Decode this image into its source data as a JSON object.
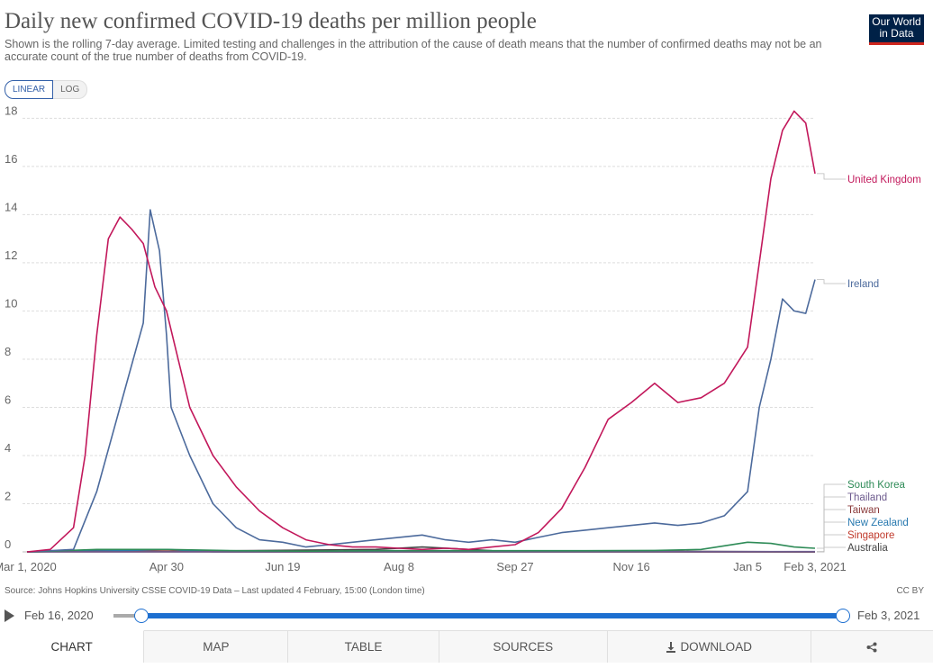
{
  "header": {
    "title": "Daily new confirmed COVID-19 deaths per million people",
    "subtitle": "Shown is the rolling 7-day average. Limited testing and challenges in the attribution of the cause of death means that the number of confirmed deaths may not be an accurate count of the true number of deaths from COVID-19.",
    "logo_line1": "Our World",
    "logo_line2": "in Data"
  },
  "scale_toggle": {
    "linear": "LINEAR",
    "log": "LOG",
    "selected": "linear"
  },
  "footer": {
    "source": "Source: Johns Hopkins University CSSE COVID-19 Data – Last updated 4 February, 15:00 (London time)",
    "license": "CC BY"
  },
  "timeline": {
    "start_label": "Feb 16, 2020",
    "end_label": "Feb 3, 2021"
  },
  "tabs": [
    {
      "label": "CHART",
      "active": true
    },
    {
      "label": "MAP"
    },
    {
      "label": "TABLE"
    },
    {
      "label": "SOURCES"
    },
    {
      "label": "DOWNLOAD"
    },
    {
      "label": ""
    }
  ],
  "colors": {
    "accent": "#1d6fd0",
    "brand": "#002147",
    "brand_line": "#ce261e"
  },
  "icons": {
    "play": "play-icon",
    "download": "download-icon",
    "share": "share-icon"
  },
  "chart_data": {
    "type": "line",
    "title": "Daily new confirmed COVID-19 deaths per million people",
    "y_ticks": [
      0,
      2,
      4,
      6,
      8,
      10,
      12,
      14,
      16,
      18
    ],
    "ylim": [
      0,
      18.5
    ],
    "x_tick_labels": [
      "Mar 1, 2020",
      "Apr 30",
      "Jun 19",
      "Aug 8",
      "Sep 27",
      "Nov 16",
      "Jan 5",
      "Feb 3, 2021"
    ],
    "x_tick_days": [
      0,
      60,
      110,
      160,
      210,
      260,
      310,
      339
    ],
    "xlim": [
      0,
      339
    ],
    "grid": true,
    "series": [
      {
        "name": "United Kingdom",
        "color": "#c2185b",
        "points": [
          [
            0,
            0
          ],
          [
            10,
            0.1
          ],
          [
            20,
            1.0
          ],
          [
            25,
            4
          ],
          [
            30,
            9
          ],
          [
            35,
            13
          ],
          [
            40,
            13.9
          ],
          [
            45,
            13.4
          ],
          [
            50,
            12.8
          ],
          [
            55,
            11
          ],
          [
            60,
            10
          ],
          [
            70,
            6
          ],
          [
            80,
            4
          ],
          [
            90,
            2.7
          ],
          [
            100,
            1.7
          ],
          [
            110,
            1.0
          ],
          [
            120,
            0.5
          ],
          [
            130,
            0.3
          ],
          [
            140,
            0.2
          ],
          [
            150,
            0.2
          ],
          [
            160,
            0.15
          ],
          [
            170,
            0.1
          ],
          [
            180,
            0.15
          ],
          [
            190,
            0.1
          ],
          [
            200,
            0.2
          ],
          [
            210,
            0.3
          ],
          [
            220,
            0.8
          ],
          [
            230,
            1.8
          ],
          [
            240,
            3.5
          ],
          [
            250,
            5.5
          ],
          [
            260,
            6.2
          ],
          [
            270,
            7.0
          ],
          [
            280,
            6.2
          ],
          [
            290,
            6.4
          ],
          [
            300,
            7.0
          ],
          [
            310,
            8.5
          ],
          [
            315,
            12
          ],
          [
            320,
            15.5
          ],
          [
            325,
            17.5
          ],
          [
            330,
            18.3
          ],
          [
            335,
            17.8
          ],
          [
            339,
            15.7
          ]
        ]
      },
      {
        "name": "Ireland",
        "color": "#4c6a9c",
        "points": [
          [
            0,
            0
          ],
          [
            20,
            0.1
          ],
          [
            30,
            2.5
          ],
          [
            40,
            6
          ],
          [
            50,
            9.5
          ],
          [
            53,
            14.2
          ],
          [
            57,
            12.5
          ],
          [
            60,
            9
          ],
          [
            62,
            6
          ],
          [
            70,
            4
          ],
          [
            80,
            2
          ],
          [
            90,
            1
          ],
          [
            100,
            0.5
          ],
          [
            110,
            0.4
          ],
          [
            120,
            0.2
          ],
          [
            130,
            0.3
          ],
          [
            140,
            0.4
          ],
          [
            150,
            0.5
          ],
          [
            160,
            0.6
          ],
          [
            170,
            0.7
          ],
          [
            180,
            0.5
          ],
          [
            190,
            0.4
          ],
          [
            200,
            0.5
          ],
          [
            210,
            0.4
          ],
          [
            220,
            0.6
          ],
          [
            230,
            0.8
          ],
          [
            240,
            0.9
          ],
          [
            250,
            1.0
          ],
          [
            260,
            1.1
          ],
          [
            270,
            1.2
          ],
          [
            280,
            1.1
          ],
          [
            290,
            1.2
          ],
          [
            300,
            1.5
          ],
          [
            310,
            2.5
          ],
          [
            315,
            6
          ],
          [
            320,
            8
          ],
          [
            325,
            10.5
          ],
          [
            330,
            10
          ],
          [
            335,
            9.9
          ],
          [
            339,
            11.3
          ]
        ]
      },
      {
        "name": "South Korea",
        "color": "#2e8b57",
        "points": [
          [
            0,
            0
          ],
          [
            30,
            0.1
          ],
          [
            60,
            0.1
          ],
          [
            90,
            0.05
          ],
          [
            120,
            0.03
          ],
          [
            150,
            0.05
          ],
          [
            180,
            0.05
          ],
          [
            210,
            0.05
          ],
          [
            240,
            0.05
          ],
          [
            270,
            0.06
          ],
          [
            290,
            0.1
          ],
          [
            300,
            0.25
          ],
          [
            310,
            0.4
          ],
          [
            320,
            0.35
          ],
          [
            330,
            0.2
          ],
          [
            339,
            0.15
          ]
        ]
      },
      {
        "name": "Thailand",
        "color": "#6d5b8e",
        "points": [
          [
            0,
            0
          ],
          [
            339,
            0.01
          ]
        ]
      },
      {
        "name": "Taiwan",
        "color": "#8b3a3a",
        "points": [
          [
            0,
            0
          ],
          [
            339,
            0.0
          ]
        ]
      },
      {
        "name": "New Zealand",
        "color": "#2a7ab0",
        "points": [
          [
            0,
            0
          ],
          [
            40,
            0.05
          ],
          [
            60,
            0.1
          ],
          [
            80,
            0.0
          ],
          [
            339,
            0.0
          ]
        ]
      },
      {
        "name": "Singapore",
        "color": "#c0392b",
        "points": [
          [
            0,
            0
          ],
          [
            40,
            0.05
          ],
          [
            60,
            0.03
          ],
          [
            90,
            0.0
          ],
          [
            339,
            0.0
          ]
        ]
      },
      {
        "name": "Australia",
        "color": "#444444",
        "points": [
          [
            0,
            0
          ],
          [
            30,
            0.05
          ],
          [
            60,
            0.02
          ],
          [
            150,
            0.1
          ],
          [
            170,
            0.2
          ],
          [
            200,
            0.05
          ],
          [
            339,
            0.0
          ]
        ]
      }
    ]
  }
}
